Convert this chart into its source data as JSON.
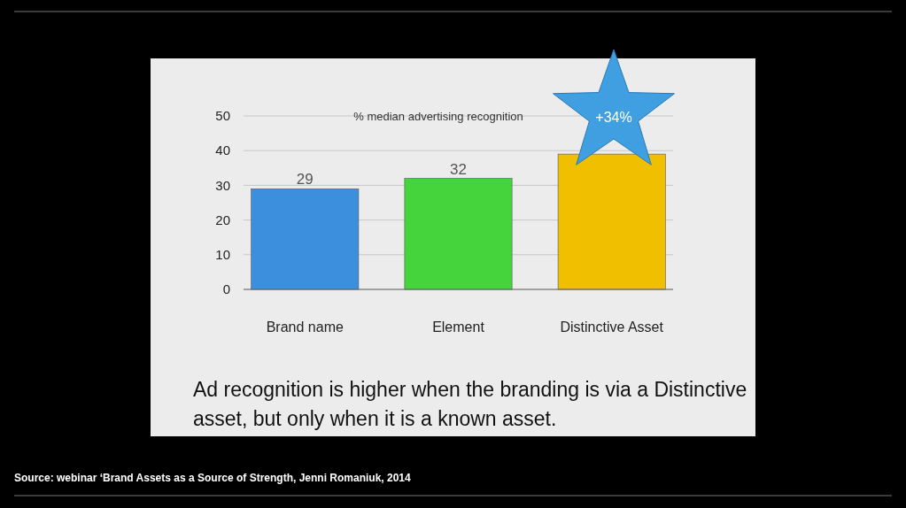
{
  "chart_data": {
    "type": "bar",
    "title": "% median advertising recognition",
    "categories": [
      "Brand name",
      "Element",
      "Distinctive Asset"
    ],
    "values": [
      29,
      32,
      39
    ],
    "colors": [
      "#3b8fdc",
      "#46d43c",
      "#f0c000"
    ],
    "value_labels": [
      "29",
      "32",
      null
    ],
    "ylim": [
      0,
      50
    ],
    "yticks": [
      0,
      10,
      20,
      30,
      40,
      50
    ],
    "grid": "y",
    "annotations": [
      "+34%",
      "Ad recognition is higher when the branding is via a Distinctive asset, but only when it is a known asset.",
      "Source: webinar ‘Brand Assets as a Source of Strength, Jenni Romaniuk, 2014"
    ]
  }
}
